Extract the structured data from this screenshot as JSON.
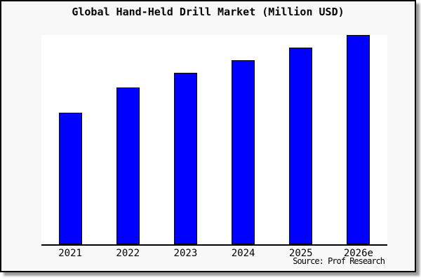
{
  "title": "Global Hand-Held Drill Market (Million USD)",
  "source": "Source: Prof Research",
  "colors": {
    "bar_fill": "#0000ff",
    "bar_border": "#000000",
    "figure_bg": "#f8f8f8",
    "plot_bg": "#ffffff",
    "axis": "#000000",
    "text": "#000000"
  },
  "chart_data": {
    "type": "bar",
    "title": "Global Hand-Held Drill Market (Million USD)",
    "categories": [
      "2021",
      "2022",
      "2023",
      "2024",
      "2025",
      "2026e"
    ],
    "values": [
      63,
      75,
      82,
      88,
      94,
      100
    ],
    "value_units": "relative index estimated from bar heights; no y-axis scale shown (2026e = 100)",
    "xlabel": "",
    "ylabel": "",
    "ylim": [
      0,
      100
    ],
    "grid": false,
    "legend": false,
    "annotations": [
      "Source: Prof Research"
    ]
  }
}
